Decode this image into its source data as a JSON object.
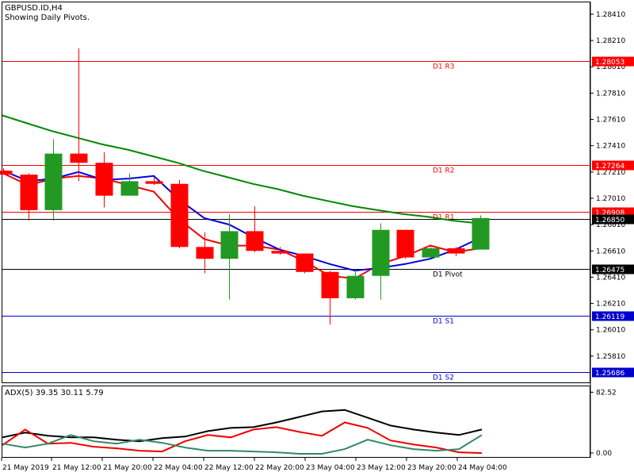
{
  "header": {
    "symbol_line": "GBPUSD.ID,H4",
    "pivots_line": "Showing Daily Pivots."
  },
  "colors": {
    "bull": "#229922",
    "bear": "#ff0000",
    "ma_fast": "#0000dd",
    "ma_red": "#ee0000",
    "ma_slow": "#008800",
    "resistance": "#ff0000",
    "support": "#0000cc",
    "pivot": "#000000"
  },
  "chart_data": [
    {
      "type": "candlestick",
      "ylim": [
        1.2561,
        1.285
      ],
      "y_ticks": [
        "1.28410",
        "1.28210",
        "1.28010",
        "1.27810",
        "1.27610",
        "1.27410",
        "1.27210",
        "1.27010",
        "1.26810",
        "1.26610",
        "1.26410",
        "1.26210",
        "1.26010",
        "1.25810"
      ],
      "x_labels": [
        "21 May 2019",
        "21 May 12:00",
        "21 May 20:00",
        "22 May 04:00",
        "22 May 12:00",
        "22 May 20:00",
        "23 May 04:00",
        "23 May 12:00",
        "23 May 20:00",
        "24 May 04:00"
      ],
      "candles": [
        {
          "o": 1.2722,
          "h": 1.2724,
          "l": 1.2719,
          "c": 1.2719
        },
        {
          "o": 1.2719,
          "h": 1.272,
          "l": 1.2684,
          "c": 1.2692
        },
        {
          "o": 1.2692,
          "h": 1.2746,
          "l": 1.2684,
          "c": 1.2735
        },
        {
          "o": 1.2735,
          "h": 1.2815,
          "l": 1.2714,
          "c": 1.2728
        },
        {
          "o": 1.2728,
          "h": 1.2736,
          "l": 1.2694,
          "c": 1.2703
        },
        {
          "o": 1.2703,
          "h": 1.272,
          "l": 1.2703,
          "c": 1.2714
        },
        {
          "o": 1.2714,
          "h": 1.2717,
          "l": 1.2711,
          "c": 1.2712
        },
        {
          "o": 1.2712,
          "h": 1.2715,
          "l": 1.2663,
          "c": 1.2664
        },
        {
          "o": 1.2664,
          "h": 1.2675,
          "l": 1.2644,
          "c": 1.2655
        },
        {
          "o": 1.2655,
          "h": 1.2689,
          "l": 1.2624,
          "c": 1.2676
        },
        {
          "o": 1.2676,
          "h": 1.2695,
          "l": 1.266,
          "c": 1.2661
        },
        {
          "o": 1.2661,
          "h": 1.2664,
          "l": 1.2658,
          "c": 1.2659
        },
        {
          "o": 1.2659,
          "h": 1.2659,
          "l": 1.2644,
          "c": 1.2645
        },
        {
          "o": 1.2645,
          "h": 1.2646,
          "l": 1.2605,
          "c": 1.2625
        },
        {
          "o": 1.2625,
          "h": 1.2647,
          "l": 1.2624,
          "c": 1.2642
        },
        {
          "o": 1.2642,
          "h": 1.2682,
          "l": 1.2624,
          "c": 1.2677
        },
        {
          "o": 1.2677,
          "h": 1.2677,
          "l": 1.2655,
          "c": 1.2656
        },
        {
          "o": 1.2656,
          "h": 1.2664,
          "l": 1.2656,
          "c": 1.2663
        },
        {
          "o": 1.2663,
          "h": 1.2664,
          "l": 1.2657,
          "c": 1.2659
        },
        {
          "o": 1.2662,
          "h": 1.2688,
          "l": 1.2662,
          "c": 1.2686
        }
      ],
      "ma_blue": [
        1.2722,
        1.2714,
        1.2716,
        1.2721,
        1.2715,
        1.2716,
        1.2718,
        1.27,
        1.2686,
        1.2681,
        1.2671,
        1.2662,
        1.2657,
        1.2651,
        1.2646,
        1.2648,
        1.2651,
        1.2655,
        1.2662,
        1.2671
      ],
      "ma_red": [
        1.272,
        1.2711,
        1.2716,
        1.2718,
        1.2716,
        1.2711,
        1.2706,
        1.2685,
        1.267,
        1.2665,
        1.2665,
        1.2662,
        1.2653,
        1.2642,
        1.264,
        1.2651,
        1.2657,
        1.2665,
        1.266,
        1.2663
      ],
      "ma_green": [
        1.2764,
        1.2758,
        1.2752,
        1.2747,
        1.2742,
        1.2738,
        1.2733,
        1.2728,
        1.2722,
        1.2717,
        1.2712,
        1.2708,
        1.2703,
        1.2699,
        1.2695,
        1.2692,
        1.2689,
        1.2687,
        1.2684,
        1.2682
      ],
      "levels": [
        {
          "name": "D1 R3",
          "value": "1.28053",
          "kind": "resistance"
        },
        {
          "name": "D1 R2",
          "value": "1.27264",
          "kind": "resistance"
        },
        {
          "name": "D1 R1",
          "value": "1.26908",
          "kind": "resistance"
        },
        {
          "name": "D1 Pivot",
          "value": "1.26475",
          "kind": "pivot"
        },
        {
          "name": "D1 S1",
          "value": "1.26119",
          "kind": "support"
        },
        {
          "name": "D1 S2",
          "value": "1.25686",
          "kind": "support"
        }
      ],
      "current_price": "1.26850"
    },
    {
      "type": "line",
      "title": "ADX(5) 39.35 30.11 5.79",
      "ylim": [
        0,
        90
      ],
      "y_ticks": [
        "82.52",
        "0.00"
      ],
      "series": [
        {
          "color": "#000000",
          "values": [
            25,
            31,
            27,
            25,
            25,
            22,
            20,
            24,
            26,
            33,
            37,
            38,
            44,
            51,
            58,
            60,
            50,
            40,
            35,
            31,
            28,
            35
          ]
        },
        {
          "color": "#ee0000",
          "values": [
            15,
            35,
            17,
            18,
            13,
            11,
            8,
            7,
            20,
            28,
            25,
            35,
            38,
            32,
            27,
            44,
            37,
            21,
            16,
            12,
            6,
            5
          ]
        },
        {
          "color": "#338866",
          "values": [
            17,
            12,
            17,
            28,
            20,
            17,
            22,
            18,
            12,
            8,
            8,
            7,
            6,
            4,
            4,
            10,
            22,
            15,
            10,
            8,
            10,
            28
          ]
        }
      ]
    }
  ]
}
